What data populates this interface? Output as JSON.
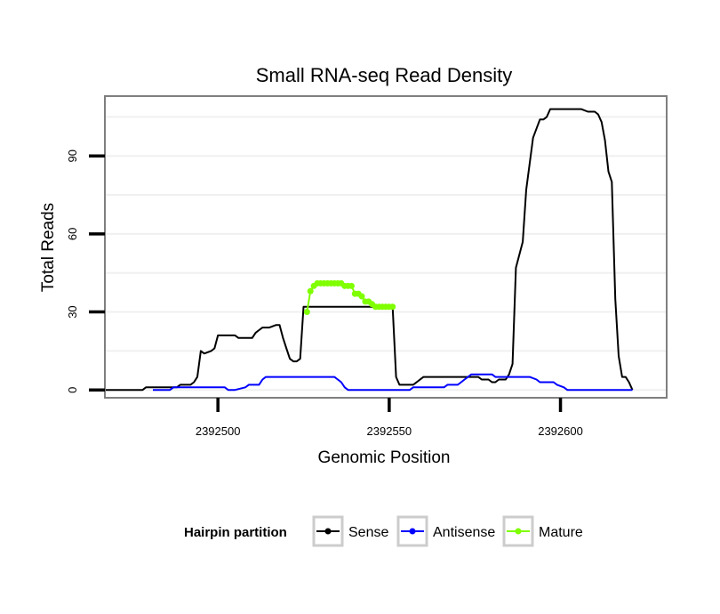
{
  "chart_data": {
    "type": "line",
    "title": "Small RNA-seq Read Density",
    "xlabel": "Genomic Position",
    "ylabel": "Total Reads",
    "x_reversed": true,
    "xlim": [
      2392467,
      2392631
    ],
    "ylim": [
      -3,
      113
    ],
    "x_ticks": [
      2392600,
      2392550,
      2392500
    ],
    "x_tick_labels": [
      "2392600",
      "2392550",
      "2392500"
    ],
    "y_ticks": [
      0,
      30,
      60,
      90
    ],
    "y_tick_labels": [
      "0",
      "30",
      "60",
      "90"
    ],
    "grid": true,
    "legend": {
      "title": "Hairpin partition",
      "position": "bottom",
      "entries": [
        "Sense",
        "Antisense",
        "Mature"
      ]
    },
    "series": [
      {
        "name": "Sense",
        "color": "#000000",
        "points": [
          [
            2392621,
            0
          ],
          [
            2392620,
            3
          ],
          [
            2392619,
            5
          ],
          [
            2392618,
            5
          ],
          [
            2392617,
            13
          ],
          [
            2392616,
            35
          ],
          [
            2392615,
            80
          ],
          [
            2392614,
            84
          ],
          [
            2392613,
            96
          ],
          [
            2392612,
            103
          ],
          [
            2392611,
            106
          ],
          [
            2392610,
            107
          ],
          [
            2392608,
            107
          ],
          [
            2392606,
            108
          ],
          [
            2392597,
            108
          ],
          [
            2392596,
            105
          ],
          [
            2392595,
            104
          ],
          [
            2392594,
            104
          ],
          [
            2392592,
            97
          ],
          [
            2392590,
            77
          ],
          [
            2392589,
            57
          ],
          [
            2392587,
            47
          ],
          [
            2392586,
            10
          ],
          [
            2392585,
            6
          ],
          [
            2392584,
            4
          ],
          [
            2392582,
            4
          ],
          [
            2392581,
            3
          ],
          [
            2392580,
            3
          ],
          [
            2392579,
            4
          ],
          [
            2392577,
            4
          ],
          [
            2392576,
            5
          ],
          [
            2392574,
            5
          ],
          [
            2392560,
            5
          ],
          [
            2392558,
            3
          ],
          [
            2392557,
            2
          ],
          [
            2392553,
            2
          ],
          [
            2392552,
            5
          ],
          [
            2392551,
            32
          ],
          [
            2392525,
            32
          ],
          [
            2392524,
            12
          ],
          [
            2392523,
            11
          ],
          [
            2392522,
            11
          ],
          [
            2392521,
            12
          ],
          [
            2392520,
            16
          ],
          [
            2392519,
            20
          ],
          [
            2392518,
            25
          ],
          [
            2392517,
            25
          ],
          [
            2392515,
            24
          ],
          [
            2392513,
            24
          ],
          [
            2392512,
            23
          ],
          [
            2392511,
            22
          ],
          [
            2392510,
            20
          ],
          [
            2392506,
            20
          ],
          [
            2392505,
            21
          ],
          [
            2392500,
            21
          ],
          [
            2392499,
            16
          ],
          [
            2392498,
            15
          ],
          [
            2392496,
            14
          ],
          [
            2392495,
            15
          ],
          [
            2392494,
            5
          ],
          [
            2392493,
            3
          ],
          [
            2392492,
            2
          ],
          [
            2392489,
            2
          ],
          [
            2392488,
            1
          ],
          [
            2392479,
            1
          ],
          [
            2392478,
            0
          ],
          [
            2392467,
            0
          ]
        ]
      },
      {
        "name": "Antisense",
        "color": "#0000ff",
        "points": [
          [
            2392621,
            0
          ],
          [
            2392602,
            0
          ],
          [
            2392601,
            1
          ],
          [
            2392599,
            2
          ],
          [
            2392598,
            3
          ],
          [
            2392594,
            3
          ],
          [
            2392593,
            4
          ],
          [
            2392591,
            5
          ],
          [
            2392581,
            5
          ],
          [
            2392580,
            6
          ],
          [
            2392574,
            6
          ],
          [
            2392573,
            5
          ],
          [
            2392572,
            4
          ],
          [
            2392571,
            3
          ],
          [
            2392570,
            2
          ],
          [
            2392567,
            2
          ],
          [
            2392566,
            1
          ],
          [
            2392557,
            1
          ],
          [
            2392556,
            0
          ],
          [
            2392538,
            0
          ],
          [
            2392537,
            1
          ],
          [
            2392536,
            3
          ],
          [
            2392535,
            4
          ],
          [
            2392534,
            5
          ],
          [
            2392519,
            5
          ],
          [
            2392514,
            5
          ],
          [
            2392513,
            4
          ],
          [
            2392512,
            2
          ],
          [
            2392509,
            2
          ],
          [
            2392508,
            1
          ],
          [
            2392505,
            0
          ],
          [
            2392503,
            0
          ],
          [
            2392502,
            1
          ],
          [
            2392500,
            1
          ],
          [
            2392487,
            1
          ],
          [
            2392486,
            0
          ],
          [
            2392481,
            0
          ]
        ]
      },
      {
        "name": "Mature",
        "color": "#7fff00",
        "points": [
          [
            2392551,
            32
          ],
          [
            2392550,
            32
          ],
          [
            2392549,
            32
          ],
          [
            2392548,
            32
          ],
          [
            2392547,
            32
          ],
          [
            2392546,
            32
          ],
          [
            2392545,
            33
          ],
          [
            2392544,
            34
          ],
          [
            2392543,
            34
          ],
          [
            2392542,
            36
          ],
          [
            2392541,
            37
          ],
          [
            2392540,
            37
          ],
          [
            2392539,
            40
          ],
          [
            2392538,
            40
          ],
          [
            2392537,
            40
          ],
          [
            2392536,
            41
          ],
          [
            2392535,
            41
          ],
          [
            2392534,
            41
          ],
          [
            2392533,
            41
          ],
          [
            2392532,
            41
          ],
          [
            2392531,
            41
          ],
          [
            2392530,
            41
          ],
          [
            2392529,
            41
          ],
          [
            2392528,
            40
          ],
          [
            2392527,
            38
          ],
          [
            2392526,
            30
          ]
        ]
      }
    ]
  }
}
